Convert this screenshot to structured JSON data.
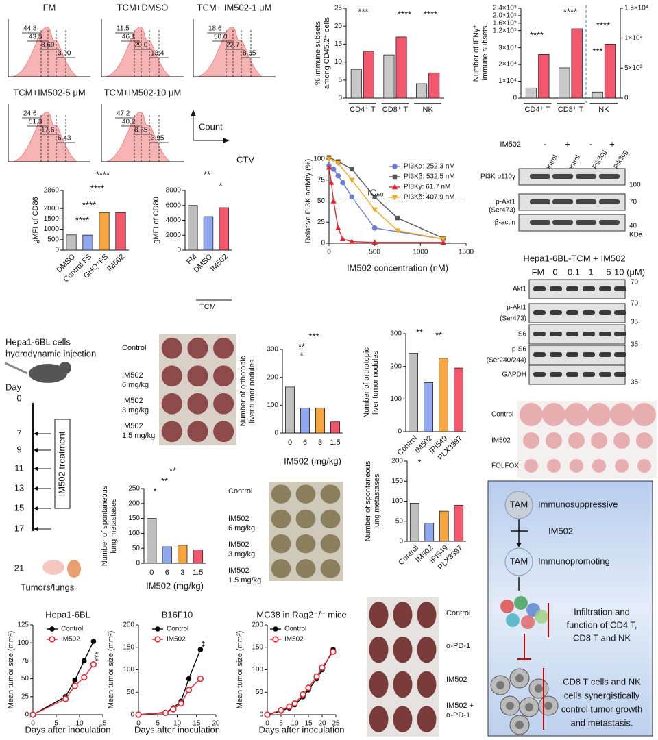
{
  "flow_histograms": [
    {
      "title": "FM",
      "gates": [
        "44.8",
        "43.5",
        "8.69",
        "3.00"
      ]
    },
    {
      "title": "TCM+DMSO",
      "gates": [
        "11.5",
        "46.1",
        "29.0",
        "13.4"
      ]
    },
    {
      "title": "TCM+ IM502-1 μM",
      "gates": [
        "18.6",
        "50.0",
        "22.7",
        "8.65"
      ]
    },
    {
      "title": "TCM+IM502-5 μM",
      "gates": [
        "24.6",
        "51.3",
        "17.6",
        "6.43"
      ]
    },
    {
      "title": "TCM+IM502-10 μM",
      "gates": [
        "47.2",
        "40.2",
        "8.65",
        "3.95"
      ]
    }
  ],
  "flow_axes": {
    "y": "Count",
    "x": "CTV"
  },
  "chart_data": [
    {
      "type": "bar",
      "ylabel": [
        "% immune subsets",
        "among CD45.2⁺ cells"
      ],
      "categories": [
        "CD4⁺ T",
        "CD8⁺ T",
        "NK"
      ],
      "series": [
        {
          "color": "#c8c8c8",
          "values": [
            8,
            12,
            4
          ]
        },
        {
          "color": "#f4566b",
          "values": [
            13,
            17,
            7
          ]
        }
      ],
      "ylim": [
        0,
        25
      ],
      "yticks": [
        0,
        5,
        10,
        15,
        20,
        25
      ],
      "annotations": [
        "***",
        "****",
        "****"
      ]
    },
    {
      "type": "bar",
      "ylabel": [
        "Number of IFNγ⁺",
        "immune subsets"
      ],
      "categories": [
        "CD4⁺ T",
        "CD8⁺ T",
        "NK"
      ],
      "series": [
        {
          "color": "#c8c8c8",
          "values": [
            6000,
            18000,
            null
          ]
        },
        {
          "color": "#f4566b",
          "values": [
            26000,
            130000,
            null
          ]
        },
        {
          "color": "#c8c8c8",
          "axis": "y2",
          "values": [
            null,
            null,
            1000
          ]
        },
        {
          "color": "#f4566b",
          "axis": "y2",
          "values": [
            null,
            null,
            9000
          ]
        }
      ],
      "ylim": [
        0,
        240000
      ],
      "yticks": [
        0,
        {
          "value": 10000,
          "label": "1×10⁴"
        },
        {
          "value": 20000,
          "label": "2×10⁴"
        },
        {
          "value": 30000,
          "label": "3×10⁴"
        },
        {
          "value": 120000,
          "label": "1.2×10⁵"
        },
        {
          "value": 160000,
          "label": "1.6×10⁵"
        },
        {
          "value": 200000,
          "label": "2.0×10⁵"
        },
        {
          "value": 240000,
          "label": "2.4×10⁵"
        }
      ],
      "y2lim": [
        0,
        15000
      ],
      "y2ticks": [
        0,
        {
          "value": 5000,
          "label": "5×10³"
        },
        {
          "value": 10000,
          "label": "1×10⁴"
        },
        {
          "value": 15000,
          "label": "1.5×10⁴"
        }
      ],
      "annotations": [
        "****",
        "****",
        "****",
        "***"
      ]
    },
    {
      "type": "bar",
      "ylabel": [
        "gMFI of CD86"
      ],
      "categories": [
        "DMSO",
        "Control FS",
        "GHQ⁺FS",
        "IM502"
      ],
      "values": [
        730,
        720,
        1800,
        1800
      ],
      "colors": [
        "#bfbfbf",
        "#8fa8ef",
        "#f7a541",
        "#f4566b"
      ],
      "ylim": [
        0,
        2860
      ],
      "yticks": [
        0,
        500,
        1000,
        1500,
        2000,
        2860
      ],
      "annotations": [
        "****",
        "****",
        "****",
        "****"
      ]
    },
    {
      "type": "bar",
      "ylabel": [
        "gMFI of CD80"
      ],
      "categories": [
        "FM",
        "DMSO",
        "IM502"
      ],
      "values": [
        6000,
        4500,
        5700
      ],
      "colors": [
        "#bfbfbf",
        "#8fa8ef",
        "#f4566b"
      ],
      "ylim": [
        0,
        8000
      ],
      "yticks": [
        0,
        2000,
        4000,
        6000,
        8000
      ],
      "group_label": "TCM",
      "annotations": [
        "**",
        "*"
      ]
    },
    {
      "type": "line",
      "ylabel": [
        "Relative PI3K activity (%)"
      ],
      "xlabel": "IM502 concentration (nM)",
      "xlim": [
        0,
        1500
      ],
      "xticks": [
        0,
        500,
        1000,
        1500
      ],
      "ylim": [
        0,
        100
      ],
      "yticks": [
        0,
        25,
        50,
        75,
        100
      ],
      "annotations": [
        "IC₅₀"
      ],
      "series": [
        {
          "name": "PI3Kα: 252.3 nM",
          "color": "#6b7fd6",
          "marker": "circle",
          "x": [
            0,
            50,
            100,
            150,
            250,
            500,
            1250
          ],
          "values": [
            92,
            88,
            80,
            72,
            55,
            18,
            5
          ]
        },
        {
          "name": "PI3Kβ: 532.5 nM",
          "color": "#555555",
          "marker": "square",
          "x": [
            0,
            100,
            250,
            500,
            750,
            1250
          ],
          "values": [
            102,
            97,
            88,
            55,
            30,
            6
          ]
        },
        {
          "name": "PI3Kγ:   61.7 nM",
          "color": "#e0262f",
          "marker": "triangle",
          "x": [
            0,
            25,
            50,
            100,
            150,
            250,
            500,
            1250
          ],
          "values": [
            90,
            72,
            50,
            18,
            5,
            2,
            1,
            1
          ]
        },
        {
          "name": "PI3Kδ: 407.9 nM",
          "color": "#f5a623",
          "marker": "triangle-down",
          "x": [
            0,
            100,
            250,
            500,
            750,
            1250
          ],
          "values": [
            100,
            95,
            75,
            40,
            15,
            5
          ]
        }
      ]
    },
    {
      "type": "bar",
      "ylabel": [
        "Number of orthotopic",
        "liver tumor nodules"
      ],
      "xlabel": "IM502 (mg/kg)",
      "categories": [
        "0",
        "6",
        "3",
        "1.5"
      ],
      "values": [
        165,
        90,
        90,
        40
      ],
      "colors": [
        "#bfbfbf",
        "#8fa8ef",
        "#f7a541",
        "#f4566b"
      ],
      "ylim": [
        0,
        300
      ],
      "yticks": [
        0,
        100,
        200,
        300
      ],
      "annotations": [
        "***",
        "**",
        "*"
      ]
    },
    {
      "type": "bar",
      "ylabel": [
        "Number of orthotopic",
        "liver tumor nodules"
      ],
      "categories": [
        "Control",
        "IM502",
        "IPI549",
        "PLX3397"
      ],
      "values": [
        240,
        150,
        225,
        195
      ],
      "colors": [
        "#bfbfbf",
        "#8fa8ef",
        "#f7a541",
        "#f4566b"
      ],
      "ylim": [
        0,
        300
      ],
      "yticks": [
        0,
        100,
        200,
        300
      ],
      "annotations": [
        "**",
        "**"
      ]
    },
    {
      "type": "bar",
      "ylabel": [
        "Number of spontaneous",
        "lung metastases"
      ],
      "xlabel": "IM502 (mg/kg)",
      "categories": [
        "0",
        "6",
        "3",
        "1.5"
      ],
      "values": [
        150,
        55,
        60,
        45
      ],
      "colors": [
        "#bfbfbf",
        "#8fa8ef",
        "#f7a541",
        "#f4566b"
      ],
      "ylim": [
        0,
        250
      ],
      "yticks": [
        0,
        50,
        100,
        150,
        200,
        250
      ],
      "annotations": [
        "**",
        "**",
        "*"
      ]
    },
    {
      "type": "bar",
      "ylabel": [
        "Number of spontaneous",
        "lung metastases"
      ],
      "categories": [
        "Control",
        "IM502",
        "IPI549",
        "PLX3397"
      ],
      "values": [
        95,
        45,
        75,
        90
      ],
      "colors": [
        "#bfbfbf",
        "#8fa8ef",
        "#f7a541",
        "#f4566b"
      ],
      "ylim": [
        0,
        200
      ],
      "yticks": [
        0,
        50,
        100,
        150,
        200
      ],
      "annotations": [
        "*"
      ]
    },
    {
      "type": "line",
      "title": "Hepa1-6BL",
      "ylabel": [
        "Mean tumor size (mm²)"
      ],
      "xlabel": "Days after inoculation",
      "xlim": [
        0,
        15
      ],
      "xticks": [
        0,
        5,
        10,
        15
      ],
      "ylim": [
        0,
        125
      ],
      "yticks": [
        0,
        25,
        50,
        75,
        100,
        125
      ],
      "annotations": [
        "***"
      ],
      "series": [
        {
          "name": "Control",
          "color": "#000000",
          "marker": "circle",
          "x": [
            0,
            7,
            9,
            11,
            13
          ],
          "values": [
            0,
            25,
            48,
            75,
            102
          ]
        },
        {
          "name": "IM502",
          "color": "#e8212b",
          "marker": "open-circle",
          "x": [
            0,
            7,
            9,
            11,
            13
          ],
          "values": [
            0,
            22,
            40,
            52,
            70
          ]
        }
      ]
    },
    {
      "type": "line",
      "title": "B16F10",
      "ylabel": [
        "Mean tumor size (mm²)"
      ],
      "xlabel": "Days after inoculation",
      "xlim": [
        0,
        20
      ],
      "xticks": [
        0,
        5,
        10,
        15,
        20
      ],
      "ylim": [
        0,
        200
      ],
      "yticks": [
        0,
        50,
        100,
        150,
        200
      ],
      "annotations": [
        "**"
      ],
      "series": [
        {
          "name": "Control",
          "color": "#000000",
          "marker": "circle",
          "x": [
            0,
            7,
            9,
            11,
            13,
            16
          ],
          "values": [
            0,
            5,
            15,
            30,
            80,
            145
          ]
        },
        {
          "name": "IM502",
          "color": "#e8212b",
          "marker": "open-circle",
          "x": [
            0,
            7,
            9,
            11,
            13,
            16
          ],
          "values": [
            0,
            4,
            12,
            25,
            55,
            80
          ]
        }
      ]
    },
    {
      "type": "line",
      "title": "MC38 in Rag2⁻/⁻ mice",
      "ylabel": [
        "Mean tumor size (mm²)"
      ],
      "xlabel": "Days after inoculation",
      "xlim": [
        0,
        25
      ],
      "xticks": [
        0,
        5,
        10,
        15,
        20,
        25
      ],
      "ylim": [
        0,
        200
      ],
      "yticks": [
        0,
        50,
        100,
        150,
        200
      ],
      "series": [
        {
          "name": "Control",
          "color": "#000000",
          "marker": "circle",
          "x": [
            0,
            5,
            8,
            10,
            13,
            15,
            18,
            20,
            24
          ],
          "values": [
            0,
            8,
            15,
            22,
            40,
            55,
            80,
            100,
            145
          ]
        },
        {
          "name": "IM502",
          "color": "#e8212b",
          "marker": "open-circle",
          "x": [
            0,
            5,
            8,
            10,
            13,
            15,
            18,
            20,
            24
          ],
          "values": [
            0,
            10,
            18,
            25,
            45,
            60,
            85,
            105,
            140
          ]
        }
      ]
    }
  ],
  "blot_sirna": {
    "header": [
      "IM502",
      "-",
      "+",
      "-",
      "+"
    ],
    "lanes": [
      "Control",
      "Control",
      "si-Pik3cg",
      "si-Pik3cg"
    ],
    "rows": [
      "PI3K p110γ",
      "p-Akt1",
      "(Ser473)",
      "β-actin"
    ],
    "markers": [
      "100",
      "70",
      "40"
    ],
    "unit": "KDa"
  },
  "blot_dose": {
    "title": "Hepa1-6BL-TCM + IM502",
    "lanes": [
      "FM",
      "0",
      "0.1",
      "1",
      "5",
      "10 (μM)"
    ],
    "rows": [
      "Akt1",
      "p-Akt1",
      "(Ser473)",
      "S6",
      "p-S6",
      "(Ser240/244)",
      "GAPDH"
    ],
    "markers": [
      "70",
      "70",
      "35",
      "35",
      "35"
    ]
  },
  "timeline": {
    "title": [
      "Hepa1-6BL cells",
      "hydrodynamic injection"
    ],
    "day_label": "Day",
    "days": [
      "0",
      "7",
      "9",
      "11",
      "13",
      "15",
      "17",
      "21"
    ],
    "treatment": "IM502 treatment",
    "endpoint": "Tumors/lungs"
  },
  "photo_liver": [
    "Control",
    "IM502",
    "6 mg/kg",
    "IM502",
    "3 mg/kg",
    "IM502",
    "1.5 mg/kg"
  ],
  "photo_lung": [
    "Control",
    "IM502",
    "6 mg/kg",
    "IM502",
    "3 mg/kg",
    "IM502",
    "1.5 mg/kg"
  ],
  "photo_tumor": [
    "Control",
    "IM502",
    "FOLFOX"
  ],
  "photo_combo": [
    "Control",
    "α-PD-1",
    "IM502",
    "IM502 +",
    "α-PD-1"
  ],
  "diagram": {
    "cells": [
      {
        "label": "TAM",
        "text": "Immunosuppressive"
      },
      {
        "label": "TAM",
        "text": "Immunopromoting"
      }
    ],
    "drug": "IM502",
    "effect": [
      "Infiltration and",
      "function of CD4 T,",
      "CD8 T and NK"
    ],
    "outcome": [
      "CD8 T cells and NK",
      "cells synergistically",
      "control tumor growth",
      "and metastasis."
    ]
  }
}
